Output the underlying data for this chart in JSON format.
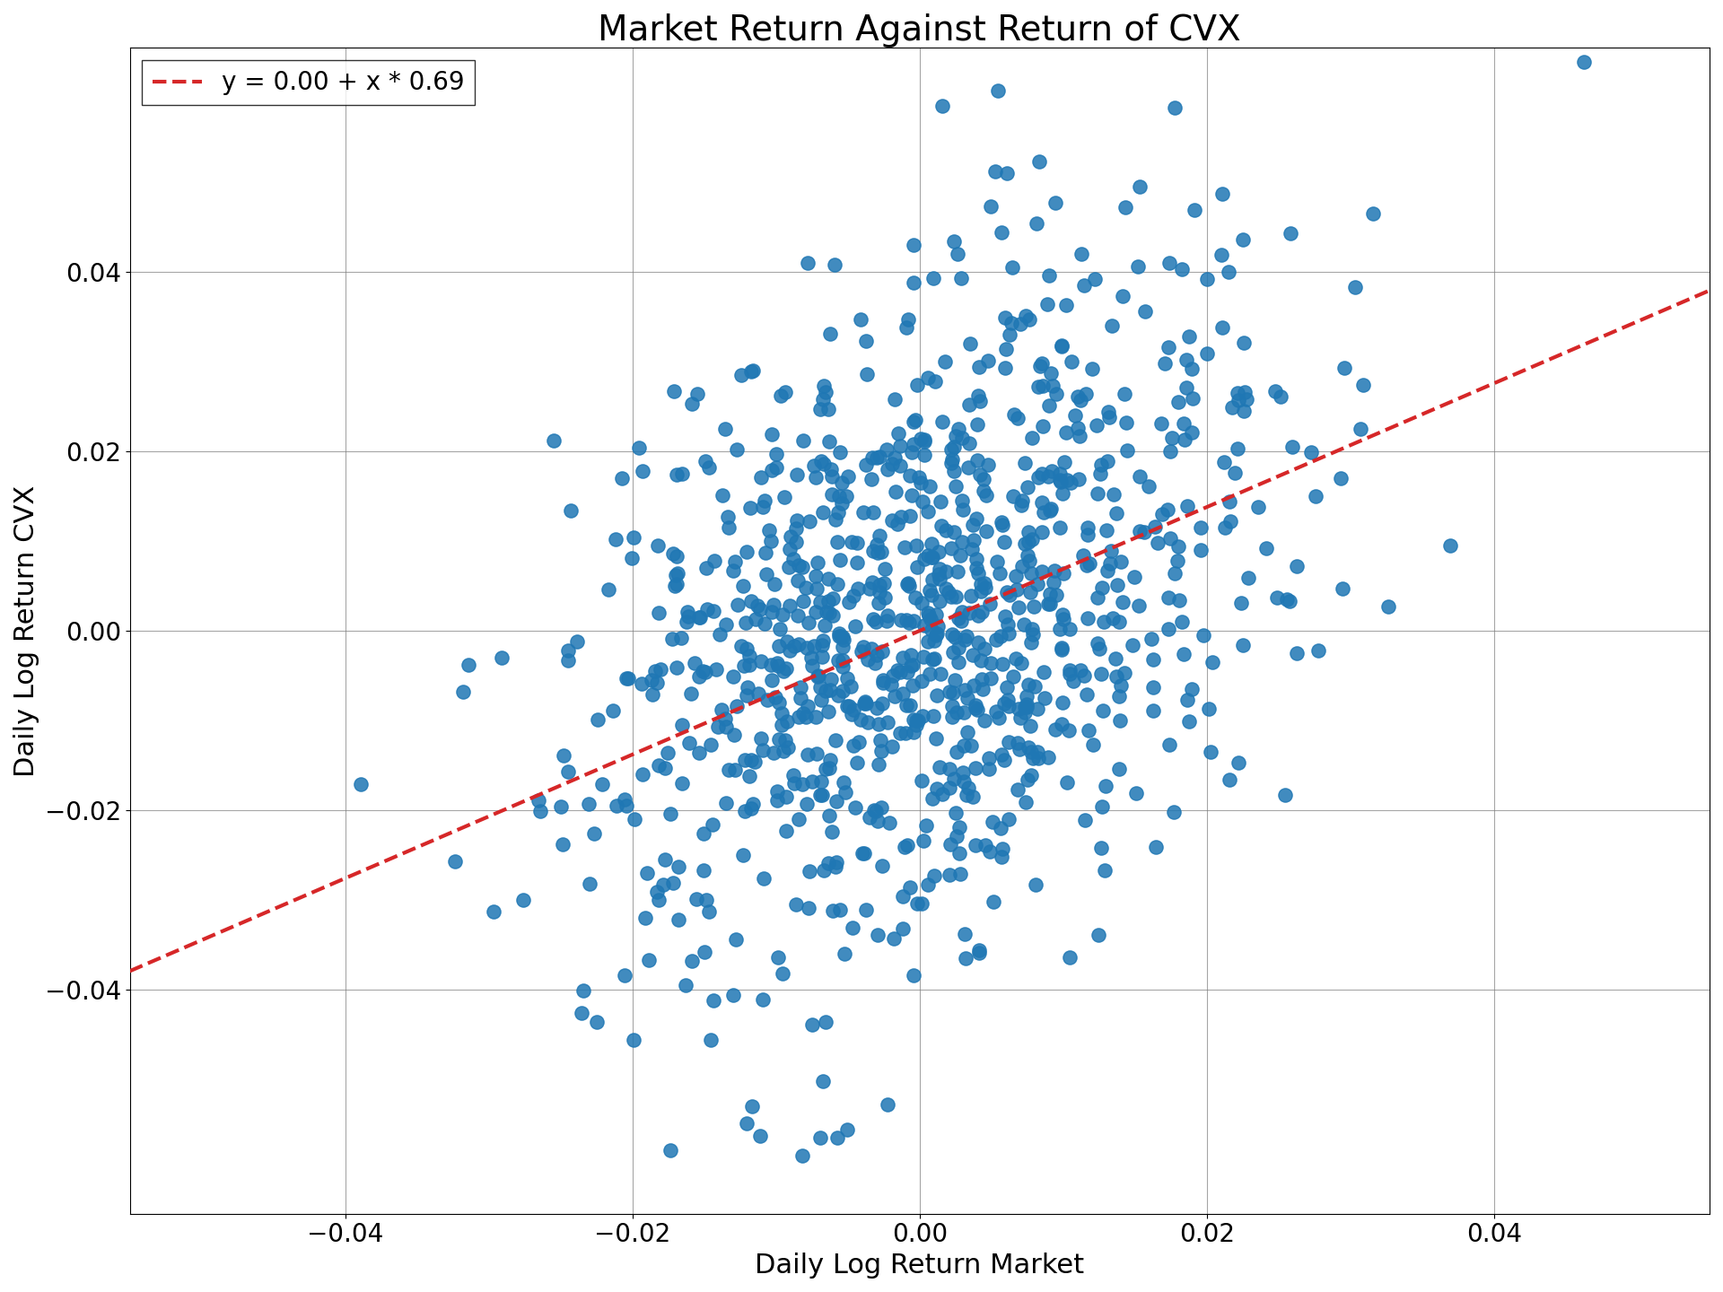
{
  "title": "Market Return Against Return of CVX",
  "xlabel": "Daily Log Return Market",
  "ylabel": "Daily Log Return CVX",
  "legend_label": "y = 0.00 + x * 0.69",
  "intercept": 0.0,
  "slope": 0.69,
  "dot_color": "#1f77b4",
  "line_color": "#d62728",
  "xlim": [
    -0.055,
    0.055
  ],
  "ylim": [
    -0.065,
    0.065
  ],
  "xticks": [
    -0.04,
    -0.02,
    0.0,
    0.02,
    0.04
  ],
  "yticks": [
    -0.04,
    -0.02,
    0.0,
    0.02,
    0.04
  ],
  "n_points": 1000,
  "random_seed": 42,
  "market_std": 0.012,
  "idiosyncratic_std": 0.018,
  "dot_size": 120,
  "dot_alpha": 0.85,
  "title_fontsize": 28,
  "label_fontsize": 22,
  "tick_fontsize": 20,
  "legend_fontsize": 20,
  "figwidth": 19.2,
  "figheight": 14.4,
  "line_x_start": -0.055,
  "line_x_end": 0.055
}
